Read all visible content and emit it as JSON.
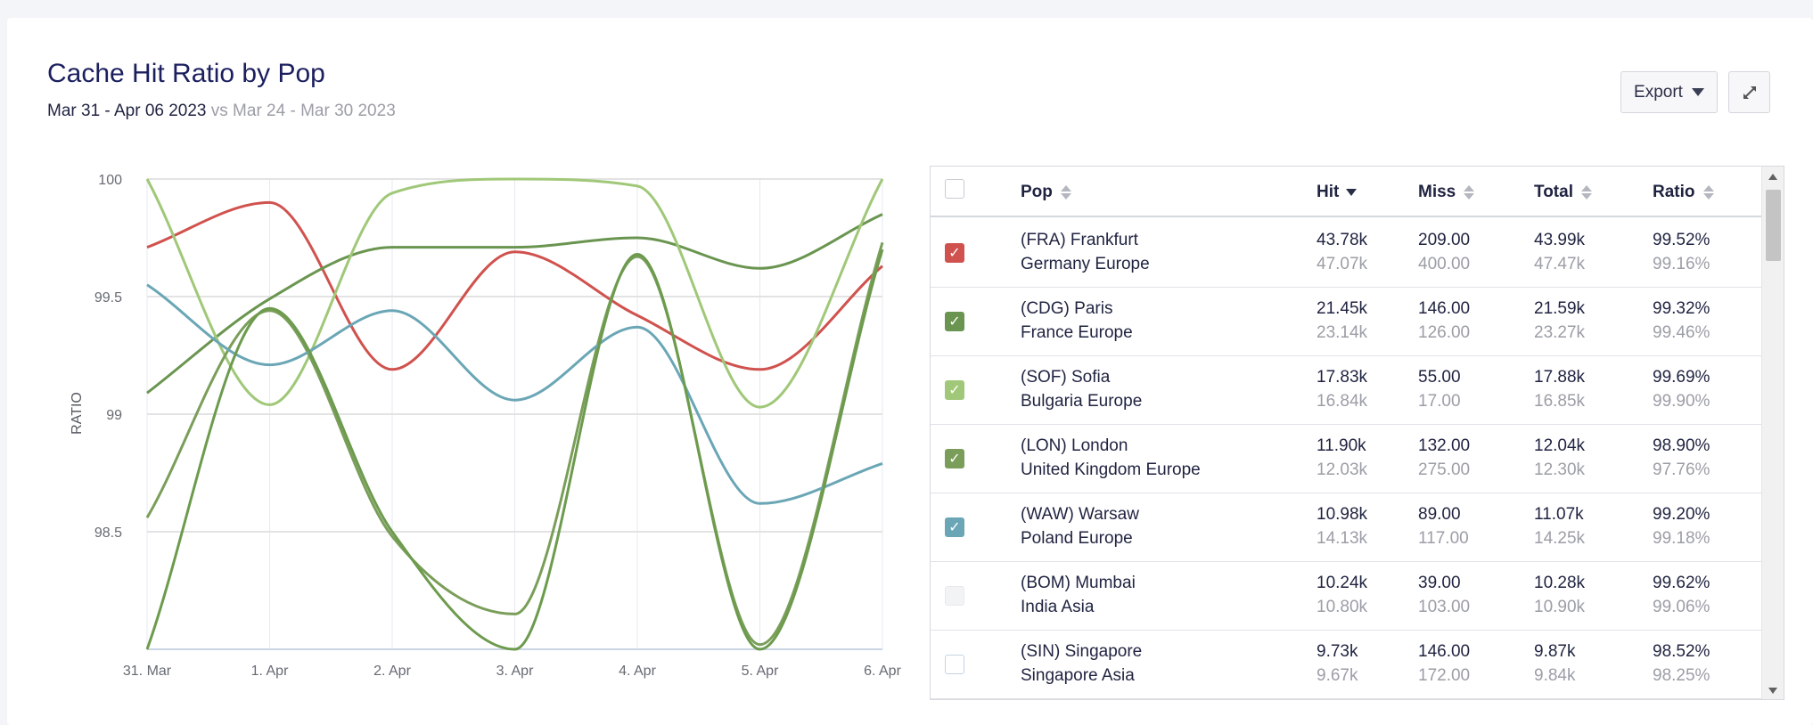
{
  "header": {
    "title": "Cache Hit Ratio by Pop",
    "date_current": "Mar 31 - Apr 06 2023",
    "date_vs": " vs Mar 24 - Mar 30 2023",
    "export_label": "Export",
    "expand_icon": "expand-icon"
  },
  "chart_data": {
    "type": "line",
    "ylabel": "RATIO",
    "ylim": [
      98,
      100
    ],
    "yticks": [
      "100",
      "99.5",
      "99",
      "98.5"
    ],
    "categories": [
      "31. Mar",
      "1. Apr",
      "2. Apr",
      "3. Apr",
      "4. Apr",
      "5. Apr",
      "6. Apr"
    ],
    "grid": true,
    "series": [
      {
        "color": "#d0524e",
        "values": [
          99.71,
          99.9,
          99.19,
          99.69,
          99.42,
          99.19,
          99.63
        ]
      },
      {
        "color": "#6a9550",
        "values": [
          99.09,
          99.49,
          99.71,
          99.71,
          99.75,
          99.62,
          99.85
        ]
      },
      {
        "color": "#a0c878",
        "values": [
          100.0,
          99.04,
          99.94,
          100.0,
          99.97,
          99.03,
          100.0
        ]
      },
      {
        "color": "#7a9e5a",
        "values": [
          98.56,
          99.44,
          98.48,
          98.15,
          99.67,
          98.02,
          99.73
        ]
      },
      {
        "color": "#6aa6b5",
        "values": [
          99.55,
          99.21,
          99.44,
          99.06,
          99.37,
          98.62,
          98.79
        ]
      },
      {
        "color": "#6d9b4e",
        "values": [
          98.0,
          99.45,
          98.5,
          98.0,
          99.68,
          98.0,
          99.7
        ]
      }
    ]
  },
  "table": {
    "headers": {
      "pop": "Pop",
      "hit": "Hit",
      "miss": "Miss",
      "total": "Total",
      "ratio": "Ratio"
    },
    "rows": [
      {
        "code": "(FRA) Frankfurt",
        "region": "Germany Europe",
        "hit": "43.78k",
        "hit_prev": "47.07k",
        "miss": "209.00",
        "miss_prev": "400.00",
        "total": "43.99k",
        "total_prev": "47.47k",
        "ratio": "99.52%",
        "ratio_prev": "99.16%",
        "checked": true,
        "color": "#d0524e"
      },
      {
        "code": "(CDG) Paris",
        "region": "France Europe",
        "hit": "21.45k",
        "hit_prev": "23.14k",
        "miss": "146.00",
        "miss_prev": "126.00",
        "total": "21.59k",
        "total_prev": "23.27k",
        "ratio": "99.32%",
        "ratio_prev": "99.46%",
        "checked": true,
        "color": "#6a9550"
      },
      {
        "code": "(SOF) Sofia",
        "region": "Bulgaria Europe",
        "hit": "17.83k",
        "hit_prev": "16.84k",
        "miss": "55.00",
        "miss_prev": "17.00",
        "total": "17.88k",
        "total_prev": "16.85k",
        "ratio": "99.69%",
        "ratio_prev": "99.90%",
        "checked": true,
        "color": "#a0c878"
      },
      {
        "code": "(LON) London",
        "region": "United Kingdom Europe",
        "hit": "11.90k",
        "hit_prev": "12.03k",
        "miss": "132.00",
        "miss_prev": "275.00",
        "total": "12.04k",
        "total_prev": "12.30k",
        "ratio": "98.90%",
        "ratio_prev": "97.76%",
        "checked": true,
        "color": "#7a9e5a"
      },
      {
        "code": "(WAW) Warsaw",
        "region": "Poland Europe",
        "hit": "10.98k",
        "hit_prev": "14.13k",
        "miss": "89.00",
        "miss_prev": "117.00",
        "total": "11.07k",
        "total_prev": "14.25k",
        "ratio": "99.20%",
        "ratio_prev": "99.18%",
        "checked": true,
        "color": "#6aa6b5"
      },
      {
        "code": "(BOM) Mumbai",
        "region": "India Asia",
        "hit": "10.24k",
        "hit_prev": "10.80k",
        "miss": "39.00",
        "miss_prev": "103.00",
        "total": "10.28k",
        "total_prev": "10.90k",
        "ratio": "99.62%",
        "ratio_prev": "99.06%",
        "checked": false,
        "color": "#f2f3f5"
      },
      {
        "code": "(SIN) Singapore",
        "region": "Singapore Asia",
        "hit": "9.73k",
        "hit_prev": "9.67k",
        "miss": "146.00",
        "miss_prev": "172.00",
        "total": "9.87k",
        "total_prev": "9.84k",
        "ratio": "98.52%",
        "ratio_prev": "98.25%",
        "checked": false,
        "color": "#ffffff"
      }
    ]
  }
}
